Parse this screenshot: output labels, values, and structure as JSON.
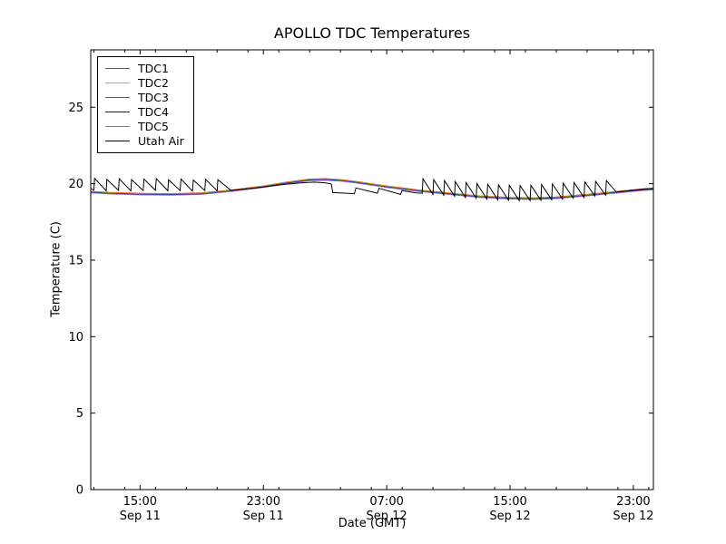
{
  "chart_data": {
    "type": "line",
    "title": "APOLLO TDC Temperatures",
    "xlabel": "Date (GMT)",
    "ylabel": "Temperature (C)",
    "x_unit": "hours since Sep 11 00:00 GMT",
    "xlim": [
      11.8,
      48.3
    ],
    "ylim": [
      0,
      28.75
    ],
    "grid": false,
    "yticks": [
      0,
      5,
      10,
      15,
      20,
      25
    ],
    "x_minor_tick_step": 2,
    "xticks": [
      {
        "hour": 15,
        "time": "15:00",
        "date": "Sep 11"
      },
      {
        "hour": 23,
        "time": "23:00",
        "date": "Sep 11"
      },
      {
        "hour": 31,
        "time": "07:00",
        "date": "Sep 12"
      },
      {
        "hour": 39,
        "time": "15:00",
        "date": "Sep 12"
      },
      {
        "hour": 47,
        "time": "23:00",
        "date": "Sep 12"
      }
    ],
    "legend_position": "upper left",
    "tdc_x": [
      11.8,
      13,
      15,
      17,
      19,
      21,
      23,
      24.5,
      26,
      27,
      28,
      29,
      30,
      31,
      33,
      35,
      37,
      39,
      40.5,
      42,
      44,
      46,
      47.5,
      48.3
    ],
    "series": [
      {
        "name": "TDC1",
        "color": "#d62728",
        "values": [
          19.5,
          19.43,
          19.37,
          19.35,
          19.4,
          19.6,
          19.85,
          20.1,
          20.3,
          20.33,
          20.27,
          20.15,
          20.0,
          19.85,
          19.6,
          19.4,
          19.2,
          19.1,
          19.07,
          19.13,
          19.3,
          19.5,
          19.65,
          19.7
        ]
      },
      {
        "name": "TDC2",
        "color": "#ff9900",
        "values": [
          19.48,
          19.41,
          19.35,
          19.33,
          19.38,
          19.58,
          19.83,
          20.08,
          20.28,
          20.31,
          20.25,
          20.13,
          19.98,
          19.83,
          19.58,
          19.38,
          19.18,
          19.08,
          19.05,
          19.11,
          19.28,
          19.48,
          19.63,
          19.68
        ]
      },
      {
        "name": "TDC3",
        "color": "#228b22",
        "values": [
          19.45,
          19.38,
          19.32,
          19.3,
          19.35,
          19.55,
          19.8,
          20.05,
          20.25,
          20.28,
          20.22,
          20.1,
          19.95,
          19.8,
          19.55,
          19.35,
          19.15,
          19.05,
          19.02,
          19.08,
          19.25,
          19.45,
          19.6,
          19.65
        ]
      },
      {
        "name": "TDC4",
        "color": "#0000ee",
        "values": [
          19.42,
          19.35,
          19.29,
          19.27,
          19.32,
          19.52,
          19.77,
          20.02,
          20.22,
          20.25,
          20.19,
          20.07,
          19.92,
          19.77,
          19.52,
          19.32,
          19.12,
          19.02,
          18.99,
          19.05,
          19.22,
          19.42,
          19.57,
          19.62
        ]
      },
      {
        "name": "TDC5",
        "color": "#9467bd",
        "values": [
          19.4,
          19.33,
          19.27,
          19.25,
          19.3,
          19.5,
          19.75,
          20.0,
          20.2,
          20.23,
          20.17,
          20.05,
          19.9,
          19.75,
          19.5,
          19.3,
          19.1,
          19.0,
          18.97,
          19.03,
          19.2,
          19.4,
          19.55,
          19.6
        ]
      },
      {
        "name": "Utah Air",
        "color": "#000000",
        "points": [
          [
            11.8,
            19.68
          ],
          [
            12.0,
            19.58
          ],
          [
            12.05,
            20.35
          ],
          [
            12.8,
            19.54
          ],
          [
            12.85,
            20.28
          ],
          [
            13.6,
            19.56
          ],
          [
            13.65,
            20.32
          ],
          [
            14.4,
            19.53
          ],
          [
            14.45,
            20.27
          ],
          [
            15.2,
            19.55
          ],
          [
            15.25,
            20.3
          ],
          [
            16.0,
            19.57
          ],
          [
            16.05,
            20.33
          ],
          [
            16.8,
            19.54
          ],
          [
            16.85,
            20.26
          ],
          [
            17.6,
            19.55
          ],
          [
            17.65,
            20.3
          ],
          [
            18.4,
            19.52
          ],
          [
            18.45,
            20.24
          ],
          [
            19.2,
            19.55
          ],
          [
            19.25,
            20.29
          ],
          [
            20.0,
            19.54
          ],
          [
            20.05,
            20.26
          ],
          [
            20.9,
            19.56
          ],
          [
            21.5,
            19.62
          ],
          [
            22.5,
            19.72
          ],
          [
            23.5,
            19.85
          ],
          [
            24.5,
            19.97
          ],
          [
            25.5,
            20.06
          ],
          [
            26.3,
            20.1
          ],
          [
            27.0,
            20.06
          ],
          [
            27.4,
            19.98
          ],
          [
            27.5,
            19.42
          ],
          [
            28.9,
            19.35
          ],
          [
            29.0,
            19.72
          ],
          [
            30.4,
            19.38
          ],
          [
            30.5,
            19.7
          ],
          [
            31.9,
            19.3
          ],
          [
            32.0,
            19.55
          ],
          [
            32.9,
            19.4
          ],
          [
            33.3,
            19.38
          ],
          [
            33.35,
            20.32
          ],
          [
            34.0,
            19.3
          ],
          [
            34.05,
            20.26
          ],
          [
            34.7,
            19.25
          ],
          [
            34.75,
            20.2
          ],
          [
            35.4,
            19.18
          ],
          [
            35.45,
            20.14
          ],
          [
            36.1,
            19.1
          ],
          [
            36.15,
            20.08
          ],
          [
            36.8,
            19.05
          ],
          [
            36.85,
            20.02
          ],
          [
            37.5,
            19.0
          ],
          [
            37.55,
            19.97
          ],
          [
            38.2,
            18.95
          ],
          [
            38.25,
            19.93
          ],
          [
            38.9,
            18.92
          ],
          [
            38.95,
            19.9
          ],
          [
            39.6,
            18.9
          ],
          [
            39.65,
            19.88
          ],
          [
            40.3,
            18.9
          ],
          [
            40.35,
            19.9
          ],
          [
            41.0,
            18.92
          ],
          [
            41.05,
            19.94
          ],
          [
            41.7,
            18.95
          ],
          [
            41.75,
            19.98
          ],
          [
            42.4,
            19.0
          ],
          [
            42.45,
            20.03
          ],
          [
            43.1,
            19.05
          ],
          [
            43.15,
            20.08
          ],
          [
            43.8,
            19.1
          ],
          [
            43.85,
            20.12
          ],
          [
            44.5,
            19.2
          ],
          [
            44.55,
            20.16
          ],
          [
            45.2,
            19.25
          ],
          [
            45.25,
            20.2
          ],
          [
            45.9,
            19.45
          ],
          [
            46.5,
            19.52
          ],
          [
            47.2,
            19.6
          ],
          [
            47.8,
            19.66
          ],
          [
            48.3,
            19.7
          ]
        ]
      }
    ],
    "colors": {
      "background": "#ffffff",
      "axis": "#000000",
      "text": "#000000"
    }
  }
}
